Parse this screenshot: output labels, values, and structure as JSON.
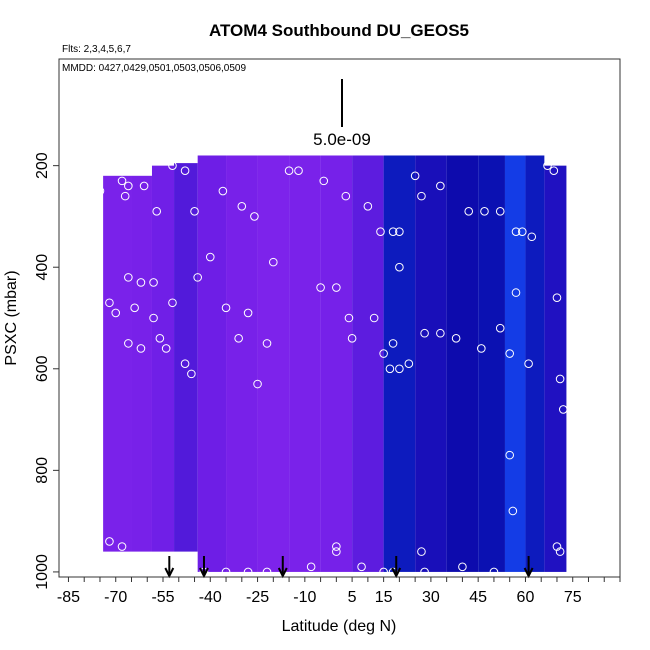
{
  "chart_data": {
    "type": "heatmap",
    "title": "ATOM4 Southbound DU_GEOS5",
    "flights_note": "Flts: 2,3,4,5,6,7",
    "dates_note": "MMDD: 0427,0429,0501,0503,0506,0509",
    "xlabel": "Latitude (deg N)",
    "ylabel": "PSXC (mbar)",
    "xlim": [
      -88,
      90
    ],
    "ylim": [
      1010,
      -10
    ],
    "xticks": [
      -85,
      -70,
      -55,
      -40,
      -25,
      -10,
      5,
      15,
      30,
      45,
      60,
      75
    ],
    "xtick_labels": [
      "-85",
      "-70",
      "-55",
      "-40",
      "-25",
      "-10",
      "5",
      "15",
      "30",
      "45",
      "60",
      "75"
    ],
    "yticks": [
      200,
      400,
      600,
      800,
      1000
    ],
    "ytick_labels": [
      "200",
      "400",
      "600",
      "800",
      "1000"
    ],
    "scale_label": "5.0e-09",
    "arrow_latitudes": [
      -53,
      -42,
      -17,
      19,
      61
    ],
    "columns": [
      {
        "lat": -68,
        "top": 220,
        "bottom": 960,
        "value": 0.18
      },
      {
        "lat": -62,
        "top": 220,
        "bottom": 960,
        "value": 0.2
      },
      {
        "lat": -55,
        "top": 200,
        "bottom": 960,
        "value": 0.28
      },
      {
        "lat": -48,
        "top": 195,
        "bottom": 960,
        "value": 0.38
      },
      {
        "lat": -40,
        "top": 180,
        "bottom": 1000,
        "value": 0.3
      },
      {
        "lat": -30,
        "top": 180,
        "bottom": 1000,
        "value": 0.2
      },
      {
        "lat": -20,
        "top": 180,
        "bottom": 1000,
        "value": 0.15
      },
      {
        "lat": -10,
        "top": 180,
        "bottom": 1000,
        "value": 0.18
      },
      {
        "lat": 0,
        "top": 180,
        "bottom": 1000,
        "value": 0.22
      },
      {
        "lat": 10,
        "top": 180,
        "bottom": 1000,
        "value": 0.35
      },
      {
        "lat": 20,
        "top": 180,
        "bottom": 1000,
        "value": 0.75
      },
      {
        "lat": 30,
        "top": 180,
        "bottom": 1000,
        "value": 0.6
      },
      {
        "lat": 40,
        "top": 180,
        "bottom": 1000,
        "value": 0.68
      },
      {
        "lat": 50,
        "top": 180,
        "bottom": 1000,
        "value": 0.72
      },
      {
        "lat": 57,
        "top": 180,
        "bottom": 1000,
        "value": 0.85
      },
      {
        "lat": 63,
        "top": 180,
        "bottom": 1000,
        "value": 0.75
      },
      {
        "lat": 69,
        "top": 200,
        "bottom": 1000,
        "value": 0.55
      }
    ],
    "sample_points": [
      {
        "lat": -84,
        "p": 240
      },
      {
        "lat": -80,
        "p": 240
      },
      {
        "lat": -75,
        "p": 250
      },
      {
        "lat": -68,
        "p": 230
      },
      {
        "lat": -67,
        "p": 260
      },
      {
        "lat": -66,
        "p": 240
      },
      {
        "lat": -61,
        "p": 240
      },
      {
        "lat": -57,
        "p": 290
      },
      {
        "lat": -52,
        "p": 200
      },
      {
        "lat": -48,
        "p": 210
      },
      {
        "lat": -45,
        "p": 290
      },
      {
        "lat": -36,
        "p": 250
      },
      {
        "lat": -30,
        "p": 280
      },
      {
        "lat": -26,
        "p": 300
      },
      {
        "lat": -20,
        "p": 390
      },
      {
        "lat": -15,
        "p": 210
      },
      {
        "lat": -12,
        "p": 210
      },
      {
        "lat": -4,
        "p": 230
      },
      {
        "lat": 3,
        "p": 260
      },
      {
        "lat": 10,
        "p": 280
      },
      {
        "lat": 14,
        "p": 330
      },
      {
        "lat": 18,
        "p": 330
      },
      {
        "lat": 20,
        "p": 330
      },
      {
        "lat": 25,
        "p": 220
      },
      {
        "lat": 27,
        "p": 260
      },
      {
        "lat": 33,
        "p": 240
      },
      {
        "lat": 42,
        "p": 290
      },
      {
        "lat": 47,
        "p": 290
      },
      {
        "lat": 52,
        "p": 290
      },
      {
        "lat": 57,
        "p": 330
      },
      {
        "lat": 59,
        "p": 330
      },
      {
        "lat": 62,
        "p": 340
      },
      {
        "lat": 67,
        "p": 200
      },
      {
        "lat": 69,
        "p": 210
      },
      {
        "lat": -66,
        "p": 420
      },
      {
        "lat": -62,
        "p": 430
      },
      {
        "lat": -58,
        "p": 430
      },
      {
        "lat": -52,
        "p": 470
      },
      {
        "lat": -44,
        "p": 420
      },
      {
        "lat": -40,
        "p": 380
      },
      {
        "lat": -35,
        "p": 480
      },
      {
        "lat": -31,
        "p": 540
      },
      {
        "lat": -28,
        "p": 490
      },
      {
        "lat": -22,
        "p": 550
      },
      {
        "lat": -5,
        "p": 440
      },
      {
        "lat": 0,
        "p": 440
      },
      {
        "lat": 4,
        "p": 500
      },
      {
        "lat": 12,
        "p": 500
      },
      {
        "lat": 18,
        "p": 550
      },
      {
        "lat": 20,
        "p": 400
      },
      {
        "lat": -72,
        "p": 470
      },
      {
        "lat": -76,
        "p": 530
      },
      {
        "lat": -70,
        "p": 490
      },
      {
        "lat": -64,
        "p": 480
      },
      {
        "lat": -58,
        "p": 500
      },
      {
        "lat": -54,
        "p": 560
      },
      {
        "lat": -48,
        "p": 590
      },
      {
        "lat": -46,
        "p": 610
      },
      {
        "lat": -66,
        "p": 550
      },
      {
        "lat": -62,
        "p": 560
      },
      {
        "lat": -56,
        "p": 540
      },
      {
        "lat": -25,
        "p": 630
      },
      {
        "lat": 5,
        "p": 540
      },
      {
        "lat": 15,
        "p": 570
      },
      {
        "lat": 17,
        "p": 600
      },
      {
        "lat": 20,
        "p": 600
      },
      {
        "lat": 23,
        "p": 590
      },
      {
        "lat": 28,
        "p": 530
      },
      {
        "lat": 33,
        "p": 530
      },
      {
        "lat": 38,
        "p": 540
      },
      {
        "lat": 46,
        "p": 560
      },
      {
        "lat": 52,
        "p": 520
      },
      {
        "lat": 55,
        "p": 570
      },
      {
        "lat": 57,
        "p": 450
      },
      {
        "lat": 61,
        "p": 590
      },
      {
        "lat": 70,
        "p": 460
      },
      {
        "lat": 71,
        "p": 620
      },
      {
        "lat": 72,
        "p": 680
      },
      {
        "lat": 55,
        "p": 770
      },
      {
        "lat": 56,
        "p": 880
      },
      {
        "lat": -76,
        "p": 960
      },
      {
        "lat": -72,
        "p": 940
      },
      {
        "lat": -68,
        "p": 950
      },
      {
        "lat": -55,
        "p": 980
      },
      {
        "lat": -48,
        "p": 1000
      },
      {
        "lat": -42,
        "p": 1000
      },
      {
        "lat": -35,
        "p": 1000
      },
      {
        "lat": -28,
        "p": 1000
      },
      {
        "lat": -22,
        "p": 1000
      },
      {
        "lat": -8,
        "p": 990
      },
      {
        "lat": 0,
        "p": 950
      },
      {
        "lat": 0,
        "p": 960
      },
      {
        "lat": 8,
        "p": 990
      },
      {
        "lat": 15,
        "p": 1000
      },
      {
        "lat": 18,
        "p": 1000
      },
      {
        "lat": 27,
        "p": 960
      },
      {
        "lat": 28,
        "p": 1000
      },
      {
        "lat": 40,
        "p": 990
      },
      {
        "lat": 50,
        "p": 1000
      },
      {
        "lat": 70,
        "p": 950
      },
      {
        "lat": 71,
        "p": 960
      }
    ]
  }
}
